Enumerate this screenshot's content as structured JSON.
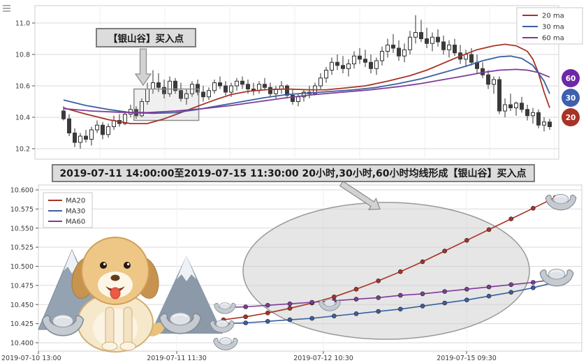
{
  "banner": {
    "text": "2019-07-11 14:00:00至2019-07-15 11:30:00 20小时,30小时,60小时均线形成【银山谷】买入点"
  },
  "decorations": {
    "puppy": "golden-retriever-puppy",
    "mountains": "snow-mountains",
    "ingot": "silver-ingot"
  },
  "chart_data": [
    {
      "type": "candlestick",
      "title": "",
      "y_ticks": [
        "11.0",
        "10.8",
        "10.6",
        "10.4",
        "10.2"
      ],
      "ylim": [
        10.13,
        11.09
      ],
      "legend_position": "upper right",
      "annotation": {
        "text": "【银山谷】买入点"
      },
      "highlight_box": {
        "i0": 12.6,
        "i1": 24.2,
        "v0": 10.38,
        "v1": 10.58
      },
      "end_badges": [
        {
          "label": "60",
          "color": "#6d28a8"
        },
        {
          "label": "30",
          "color": "#3f5fae"
        },
        {
          "label": "20",
          "color": "#a93226"
        }
      ],
      "candles": [
        [
          10.44,
          10.47,
          10.38,
          10.39
        ],
        [
          10.39,
          10.42,
          10.28,
          10.3
        ],
        [
          10.3,
          10.33,
          10.21,
          10.24
        ],
        [
          10.24,
          10.3,
          10.2,
          10.28
        ],
        [
          10.28,
          10.32,
          10.24,
          10.26
        ],
        [
          10.26,
          10.34,
          10.22,
          10.32
        ],
        [
          10.32,
          10.38,
          10.3,
          10.35
        ],
        [
          10.35,
          10.37,
          10.26,
          10.29
        ],
        [
          10.29,
          10.36,
          10.27,
          10.34
        ],
        [
          10.34,
          10.41,
          10.32,
          10.38
        ],
        [
          10.38,
          10.42,
          10.34,
          10.36
        ],
        [
          10.36,
          10.44,
          10.35,
          10.42
        ],
        [
          10.42,
          10.48,
          10.4,
          10.45
        ],
        [
          10.45,
          10.47,
          10.39,
          10.41
        ],
        [
          10.41,
          10.52,
          10.4,
          10.5
        ],
        [
          10.5,
          10.62,
          10.48,
          10.58
        ],
        [
          10.58,
          10.7,
          10.55,
          10.62
        ],
        [
          10.62,
          10.68,
          10.56,
          10.59
        ],
        [
          10.59,
          10.64,
          10.52,
          10.55
        ],
        [
          10.55,
          10.66,
          10.53,
          10.63
        ],
        [
          10.63,
          10.65,
          10.55,
          10.57
        ],
        [
          10.57,
          10.62,
          10.5,
          10.52
        ],
        [
          10.52,
          10.58,
          10.48,
          10.55
        ],
        [
          10.55,
          10.63,
          10.53,
          10.61
        ],
        [
          10.61,
          10.64,
          10.54,
          10.56
        ],
        [
          10.56,
          10.6,
          10.5,
          10.53
        ],
        [
          10.53,
          10.59,
          10.51,
          10.57
        ],
        [
          10.57,
          10.64,
          10.55,
          10.62
        ],
        [
          10.62,
          10.66,
          10.58,
          10.6
        ],
        [
          10.6,
          10.63,
          10.54,
          10.56
        ],
        [
          10.56,
          10.62,
          10.53,
          10.6
        ],
        [
          10.6,
          10.65,
          10.57,
          10.63
        ],
        [
          10.63,
          10.66,
          10.58,
          10.61
        ],
        [
          10.61,
          10.64,
          10.55,
          10.58
        ],
        [
          10.58,
          10.62,
          10.54,
          10.57
        ],
        [
          10.57,
          10.63,
          10.55,
          10.61
        ],
        [
          10.61,
          10.65,
          10.57,
          10.59
        ],
        [
          10.59,
          10.62,
          10.53,
          10.55
        ],
        [
          10.55,
          10.6,
          10.52,
          10.58
        ],
        [
          10.58,
          10.63,
          10.55,
          10.6
        ],
        [
          10.6,
          10.61,
          10.52,
          10.54
        ],
        [
          10.54,
          10.58,
          10.48,
          10.5
        ],
        [
          10.5,
          10.55,
          10.47,
          10.53
        ],
        [
          10.53,
          10.58,
          10.5,
          10.56
        ],
        [
          10.56,
          10.6,
          10.52,
          10.55
        ],
        [
          10.55,
          10.62,
          10.54,
          10.6
        ],
        [
          10.6,
          10.68,
          10.58,
          10.65
        ],
        [
          10.65,
          10.72,
          10.62,
          10.7
        ],
        [
          10.7,
          10.78,
          10.67,
          10.75
        ],
        [
          10.75,
          10.8,
          10.7,
          10.73
        ],
        [
          10.73,
          10.79,
          10.68,
          10.71
        ],
        [
          10.71,
          10.77,
          10.66,
          10.74
        ],
        [
          10.74,
          10.82,
          10.71,
          10.79
        ],
        [
          10.79,
          10.84,
          10.74,
          10.77
        ],
        [
          10.77,
          10.83,
          10.72,
          10.75
        ],
        [
          10.75,
          10.8,
          10.68,
          10.71
        ],
        [
          10.71,
          10.78,
          10.67,
          10.76
        ],
        [
          10.76,
          10.85,
          10.73,
          10.82
        ],
        [
          10.82,
          10.9,
          10.78,
          10.86
        ],
        [
          10.86,
          10.93,
          10.81,
          10.84
        ],
        [
          10.84,
          10.89,
          10.76,
          10.79
        ],
        [
          10.79,
          10.87,
          10.75,
          10.83
        ],
        [
          10.83,
          10.95,
          10.8,
          10.91
        ],
        [
          10.91,
          11.05,
          10.87,
          10.94
        ],
        [
          10.94,
          11.02,
          10.88,
          10.9
        ],
        [
          10.9,
          10.97,
          10.84,
          10.87
        ],
        [
          10.87,
          10.94,
          10.82,
          10.91
        ],
        [
          10.91,
          10.96,
          10.85,
          10.88
        ],
        [
          10.88,
          10.92,
          10.8,
          10.83
        ],
        [
          10.83,
          10.89,
          10.78,
          10.86
        ],
        [
          10.86,
          10.9,
          10.79,
          10.81
        ],
        [
          10.81,
          10.86,
          10.74,
          10.77
        ],
        [
          10.77,
          10.83,
          10.72,
          10.8
        ],
        [
          10.8,
          10.84,
          10.73,
          10.75
        ],
        [
          10.75,
          10.8,
          10.68,
          10.71
        ],
        [
          10.71,
          10.75,
          10.65,
          10.67
        ],
        [
          10.67,
          10.7,
          10.58,
          10.61
        ],
        [
          10.61,
          10.66,
          10.55,
          10.64
        ],
        [
          10.64,
          10.66,
          10.42,
          10.44
        ],
        [
          10.44,
          10.52,
          10.4,
          10.48
        ],
        [
          10.48,
          10.55,
          10.44,
          10.46
        ],
        [
          10.46,
          10.5,
          10.41,
          10.49
        ],
        [
          10.49,
          10.53,
          10.43,
          10.45
        ],
        [
          10.45,
          10.48,
          10.38,
          10.41
        ],
        [
          10.41,
          10.46,
          10.36,
          10.43
        ],
        [
          10.43,
          10.45,
          10.33,
          10.35
        ],
        [
          10.35,
          10.4,
          10.31,
          10.37
        ],
        [
          10.37,
          10.39,
          10.32,
          10.34
        ]
      ],
      "series": [
        {
          "name": "20 ma",
          "color": "#a93226",
          "points": [
            [
              0,
              10.46
            ],
            [
              4,
              10.42
            ],
            [
              8,
              10.385
            ],
            [
              12,
              10.36
            ],
            [
              15,
              10.36
            ],
            [
              18,
              10.39
            ],
            [
              21,
              10.43
            ],
            [
              24,
              10.47
            ],
            [
              27,
              10.51
            ],
            [
              30,
              10.545
            ],
            [
              33,
              10.565
            ],
            [
              36,
              10.575
            ],
            [
              40,
              10.58
            ],
            [
              44,
              10.575
            ],
            [
              47,
              10.575
            ],
            [
              50,
              10.585
            ],
            [
              54,
              10.6
            ],
            [
              58,
              10.63
            ],
            [
              62,
              10.665
            ],
            [
              65,
              10.7
            ],
            [
              68,
              10.745
            ],
            [
              71,
              10.79
            ],
            [
              74,
              10.83
            ],
            [
              77,
              10.855
            ],
            [
              79,
              10.865
            ],
            [
              81,
              10.855
            ],
            [
              83,
              10.82
            ],
            [
              84,
              10.77
            ],
            [
              85,
              10.68
            ],
            [
              86,
              10.56
            ],
            [
              87,
              10.46
            ]
          ]
        },
        {
          "name": "30 ma",
          "color": "#3a5fa0",
          "points": [
            [
              0,
              10.51
            ],
            [
              4,
              10.475
            ],
            [
              8,
              10.45
            ],
            [
              12,
              10.43
            ],
            [
              16,
              10.425
            ],
            [
              20,
              10.43
            ],
            [
              24,
              10.45
            ],
            [
              28,
              10.475
            ],
            [
              32,
              10.5
            ],
            [
              36,
              10.525
            ],
            [
              40,
              10.545
            ],
            [
              44,
              10.555
            ],
            [
              48,
              10.565
            ],
            [
              52,
              10.575
            ],
            [
              56,
              10.59
            ],
            [
              60,
              10.615
            ],
            [
              64,
              10.645
            ],
            [
              68,
              10.685
            ],
            [
              72,
              10.725
            ],
            [
              75,
              10.76
            ],
            [
              78,
              10.785
            ],
            [
              80,
              10.79
            ],
            [
              82,
              10.775
            ],
            [
              84,
              10.73
            ],
            [
              86,
              10.63
            ],
            [
              87,
              10.55
            ]
          ]
        },
        {
          "name": "60 ma",
          "color": "#7d3c98",
          "points": [
            [
              0,
              10.455
            ],
            [
              5,
              10.44
            ],
            [
              10,
              10.432
            ],
            [
              15,
              10.43
            ],
            [
              20,
              10.44
            ],
            [
              25,
              10.455
            ],
            [
              30,
              10.475
            ],
            [
              35,
              10.5
            ],
            [
              40,
              10.525
            ],
            [
              45,
              10.545
            ],
            [
              50,
              10.56
            ],
            [
              55,
              10.575
            ],
            [
              60,
              10.595
            ],
            [
              64,
              10.615
            ],
            [
              68,
              10.64
            ],
            [
              72,
              10.665
            ],
            [
              75,
              10.685
            ],
            [
              78,
              10.7
            ],
            [
              81,
              10.705
            ],
            [
              83,
              10.7
            ],
            [
              85,
              10.685
            ],
            [
              87,
              10.655
            ]
          ]
        }
      ]
    },
    {
      "type": "line",
      "title": "",
      "x_tick_labels": [
        "2019-07-10 13:00",
        "2019-07-11 11:30",
        "2019-07-12 10:30",
        "2019-07-15 09:30"
      ],
      "y_ticks": [
        "10.600",
        "10.575",
        "10.550",
        "10.525",
        "10.500",
        "10.475",
        "10.450",
        "10.425",
        "10.400"
      ],
      "ylim": [
        10.4,
        10.6
      ],
      "legend_position": "upper left",
      "highlight_ellipse": true,
      "series_span": {
        "from": "2019-07-11 14:00:00",
        "to": "2019-07-15 11:30:00"
      },
      "series": [
        {
          "name": "MA20",
          "color": "#a93226",
          "values": [
            10.43,
            10.434,
            10.439,
            10.445,
            10.452,
            10.46,
            10.47,
            10.481,
            10.493,
            10.506,
            10.52,
            10.534,
            10.548,
            10.562,
            10.576,
            10.59
          ]
        },
        {
          "name": "MA30",
          "color": "#3a5fa0",
          "values": [
            10.425,
            10.426,
            10.428,
            10.43,
            10.432,
            10.435,
            10.438,
            10.441,
            10.444,
            10.448,
            10.452,
            10.456,
            10.461,
            10.466,
            10.472,
            10.479
          ]
        },
        {
          "name": "MA60",
          "color": "#7d3c98",
          "values": [
            10.446,
            10.447,
            10.449,
            10.451,
            10.453,
            10.455,
            10.457,
            10.459,
            10.462,
            10.464,
            10.467,
            10.47,
            10.473,
            10.476,
            10.479,
            10.483
          ]
        }
      ]
    }
  ]
}
